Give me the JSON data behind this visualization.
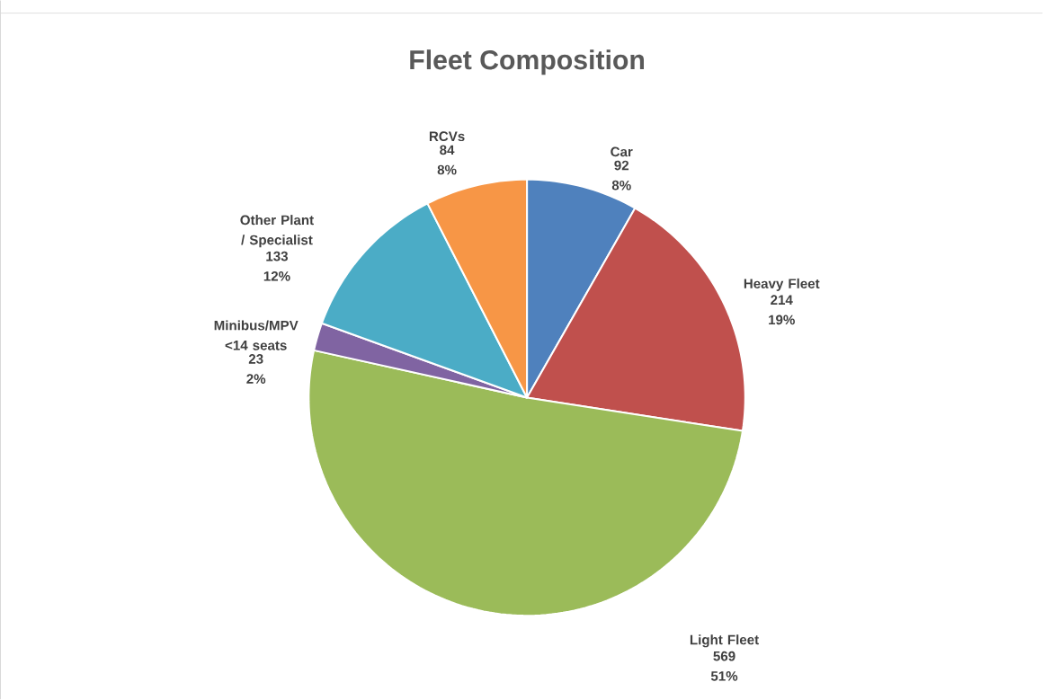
{
  "chart_data": {
    "type": "pie",
    "title": "Fleet Composition",
    "categories": [
      "Car",
      "Heavy Fleet",
      "Light Fleet",
      "Minibus/MPV <14 seats",
      "Other Plant / Specialist",
      "RCVs"
    ],
    "values": [
      92,
      214,
      569,
      23,
      133,
      84
    ],
    "colors": [
      "#4f81bd",
      "#c0504d",
      "#9bbb59",
      "#8064a2",
      "#4bacc6",
      "#f79646"
    ],
    "value_labels": [
      "92 8%",
      "214 19%",
      "569 51%",
      "23 2%",
      "133 12%",
      "84 8%"
    ]
  }
}
